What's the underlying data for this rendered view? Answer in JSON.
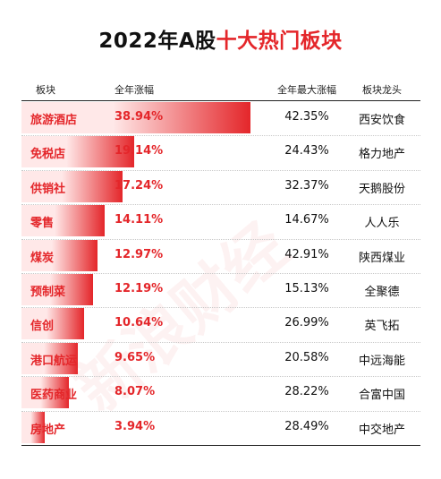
{
  "title": {
    "prefix": "2022年A股",
    "highlight": "十大热门板块"
  },
  "colors": {
    "accent": "#e4262a",
    "bar_light": "#ffe8e8"
  },
  "chart_data": {
    "type": "bar",
    "title": "2022年A股十大热门板块",
    "columns": [
      "板块",
      "全年涨幅",
      "全年最大涨幅",
      "板块龙头"
    ],
    "categories": [
      "旅游酒店",
      "免税店",
      "供销社",
      "零售",
      "煤炭",
      "预制菜",
      "信创",
      "港口航运",
      "医药商业",
      "房地产"
    ],
    "values": [
      38.94,
      19.14,
      17.24,
      14.11,
      12.97,
      12.19,
      10.64,
      9.65,
      8.07,
      3.94
    ],
    "value_labels": [
      "38.94%",
      "19.14%",
      "17.24%",
      "14.11%",
      "12.97%",
      "12.19%",
      "10.64%",
      "9.65%",
      "8.07%",
      "3.94%"
    ],
    "max_gain_labels": [
      "42.35%",
      "24.43%",
      "32.37%",
      "14.67%",
      "42.91%",
      "15.13%",
      "26.99%",
      "20.58%",
      "28.22%",
      "28.49%"
    ],
    "leaders": [
      "西安饮食",
      "格力地产",
      "天鹅股份",
      "人人乐",
      "陕西煤业",
      "全聚德",
      "英飞拓",
      "中远海能",
      "合富中国",
      "中交地产"
    ],
    "ylim": [
      0,
      39
    ]
  }
}
